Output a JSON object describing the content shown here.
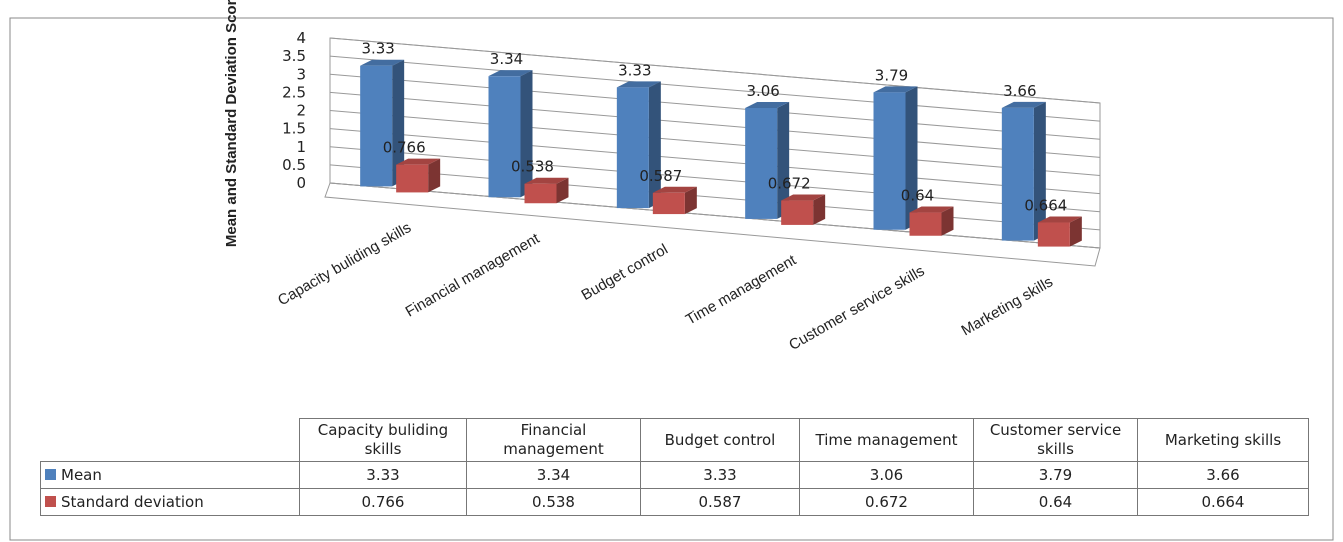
{
  "chart_data": {
    "type": "bar3d",
    "y_label": "Mean and Standard Deviation Scores",
    "categories": [
      "Capacity buliding skills",
      "Financial management",
      "Budget control",
      "Time management",
      "Customer service skills",
      "Marketing skills"
    ],
    "series": [
      {
        "name": "Mean",
        "color": "#4f81bd",
        "values": [
          3.33,
          3.34,
          3.33,
          3.06,
          3.79,
          3.66
        ]
      },
      {
        "name": "Standard deviation",
        "color": "#c0504d",
        "values": [
          0.766,
          0.538,
          0.587,
          0.672,
          0.64,
          0.664
        ]
      }
    ],
    "ylim": [
      0,
      4
    ],
    "yticks": [
      0,
      0.5,
      1,
      1.5,
      2,
      2.5,
      3,
      3.5,
      4
    ],
    "grid": true,
    "data_table": true
  }
}
